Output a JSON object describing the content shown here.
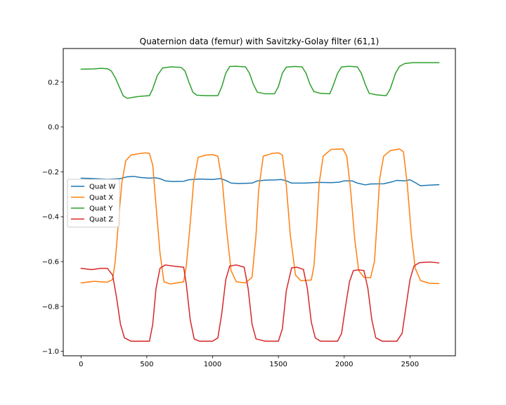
{
  "chart_data": {
    "type": "line",
    "title": "Quaternion data (femur) with Savitzky-Golay filter (61,1)",
    "xlabel": "",
    "ylabel": "",
    "xlim": [
      -135,
      2845
    ],
    "ylim": [
      -1.02,
      0.35
    ],
    "xticks": [
      0,
      500,
      1000,
      1500,
      2000,
      2500
    ],
    "xtick_labels": [
      "0",
      "500",
      "1000",
      "1500",
      "2000",
      "2500"
    ],
    "yticks": [
      0.2,
      0.0,
      -0.2,
      -0.4,
      -0.6,
      -0.8,
      -1.0
    ],
    "ytick_labels": [
      "0.2",
      "0.0",
      "−0.2",
      "−0.4",
      "−0.6",
      "−0.8",
      "−1.0"
    ],
    "grid": false,
    "legend_position": "center-left",
    "series": [
      {
        "name": "Quat W",
        "color": "#1f77b4",
        "points": [
          [
            0,
            -0.228
          ],
          [
            100,
            -0.23
          ],
          [
            200,
            -0.233
          ],
          [
            300,
            -0.23
          ],
          [
            350,
            -0.222
          ],
          [
            400,
            -0.22
          ],
          [
            450,
            -0.225
          ],
          [
            520,
            -0.228
          ],
          [
            560,
            -0.226
          ],
          [
            600,
            -0.23
          ],
          [
            640,
            -0.24
          ],
          [
            700,
            -0.243
          ],
          [
            780,
            -0.242
          ],
          [
            820,
            -0.235
          ],
          [
            900,
            -0.232
          ],
          [
            1000,
            -0.234
          ],
          [
            1060,
            -0.23
          ],
          [
            1100,
            -0.238
          ],
          [
            1140,
            -0.25
          ],
          [
            1200,
            -0.252
          ],
          [
            1300,
            -0.25
          ],
          [
            1340,
            -0.24
          ],
          [
            1400,
            -0.237
          ],
          [
            1480,
            -0.236
          ],
          [
            1520,
            -0.234
          ],
          [
            1560,
            -0.24
          ],
          [
            1600,
            -0.25
          ],
          [
            1700,
            -0.25
          ],
          [
            1800,
            -0.247
          ],
          [
            1900,
            -0.248
          ],
          [
            1960,
            -0.246
          ],
          [
            2000,
            -0.24
          ],
          [
            2060,
            -0.24
          ],
          [
            2100,
            -0.25
          ],
          [
            2160,
            -0.258
          ],
          [
            2200,
            -0.254
          ],
          [
            2300,
            -0.253
          ],
          [
            2360,
            -0.245
          ],
          [
            2400,
            -0.238
          ],
          [
            2460,
            -0.24
          ],
          [
            2500,
            -0.235
          ],
          [
            2540,
            -0.248
          ],
          [
            2580,
            -0.262
          ],
          [
            2620,
            -0.26
          ],
          [
            2720,
            -0.257
          ]
        ]
      },
      {
        "name": "Quat X",
        "color": "#ff7f0e",
        "points": [
          [
            0,
            -0.695
          ],
          [
            100,
            -0.688
          ],
          [
            200,
            -0.692
          ],
          [
            240,
            -0.68
          ],
          [
            260,
            -0.6
          ],
          [
            285,
            -0.42
          ],
          [
            310,
            -0.25
          ],
          [
            340,
            -0.15
          ],
          [
            380,
            -0.125
          ],
          [
            450,
            -0.118
          ],
          [
            490,
            -0.115
          ],
          [
            520,
            -0.118
          ],
          [
            545,
            -0.17
          ],
          [
            570,
            -0.35
          ],
          [
            600,
            -0.56
          ],
          [
            630,
            -0.69
          ],
          [
            680,
            -0.7
          ],
          [
            780,
            -0.69
          ],
          [
            800,
            -0.62
          ],
          [
            830,
            -0.43
          ],
          [
            855,
            -0.25
          ],
          [
            890,
            -0.135
          ],
          [
            950,
            -0.125
          ],
          [
            1000,
            -0.123
          ],
          [
            1040,
            -0.13
          ],
          [
            1075,
            -0.25
          ],
          [
            1105,
            -0.45
          ],
          [
            1140,
            -0.64
          ],
          [
            1180,
            -0.69
          ],
          [
            1250,
            -0.695
          ],
          [
            1300,
            -0.67
          ],
          [
            1330,
            -0.48
          ],
          [
            1350,
            -0.28
          ],
          [
            1385,
            -0.13
          ],
          [
            1450,
            -0.118
          ],
          [
            1500,
            -0.115
          ],
          [
            1530,
            -0.125
          ],
          [
            1560,
            -0.26
          ],
          [
            1590,
            -0.48
          ],
          [
            1630,
            -0.66
          ],
          [
            1670,
            -0.685
          ],
          [
            1750,
            -0.682
          ],
          [
            1770,
            -0.62
          ],
          [
            1790,
            -0.45
          ],
          [
            1810,
            -0.25
          ],
          [
            1840,
            -0.13
          ],
          [
            1900,
            -0.1
          ],
          [
            1990,
            -0.098
          ],
          [
            2020,
            -0.13
          ],
          [
            2050,
            -0.29
          ],
          [
            2080,
            -0.5
          ],
          [
            2110,
            -0.64
          ],
          [
            2150,
            -0.67
          ],
          [
            2200,
            -0.672
          ],
          [
            2230,
            -0.6
          ],
          [
            2250,
            -0.42
          ],
          [
            2270,
            -0.23
          ],
          [
            2300,
            -0.13
          ],
          [
            2350,
            -0.105
          ],
          [
            2420,
            -0.098
          ],
          [
            2450,
            -0.11
          ],
          [
            2480,
            -0.26
          ],
          [
            2510,
            -0.48
          ],
          [
            2540,
            -0.63
          ],
          [
            2580,
            -0.685
          ],
          [
            2650,
            -0.697
          ],
          [
            2720,
            -0.698
          ]
        ]
      },
      {
        "name": "Quat Y",
        "color": "#2ca02c",
        "points": [
          [
            0,
            0.258
          ],
          [
            100,
            0.259
          ],
          [
            150,
            0.262
          ],
          [
            200,
            0.26
          ],
          [
            230,
            0.25
          ],
          [
            260,
            0.22
          ],
          [
            290,
            0.18
          ],
          [
            320,
            0.14
          ],
          [
            350,
            0.128
          ],
          [
            400,
            0.133
          ],
          [
            450,
            0.137
          ],
          [
            520,
            0.14
          ],
          [
            545,
            0.17
          ],
          [
            580,
            0.23
          ],
          [
            620,
            0.263
          ],
          [
            680,
            0.268
          ],
          [
            760,
            0.266
          ],
          [
            790,
            0.25
          ],
          [
            820,
            0.2
          ],
          [
            850,
            0.155
          ],
          [
            880,
            0.142
          ],
          [
            950,
            0.14
          ],
          [
            1040,
            0.14
          ],
          [
            1070,
            0.18
          ],
          [
            1100,
            0.24
          ],
          [
            1130,
            0.27
          ],
          [
            1180,
            0.271
          ],
          [
            1250,
            0.268
          ],
          [
            1280,
            0.24
          ],
          [
            1310,
            0.19
          ],
          [
            1340,
            0.155
          ],
          [
            1400,
            0.148
          ],
          [
            1470,
            0.148
          ],
          [
            1500,
            0.18
          ],
          [
            1530,
            0.24
          ],
          [
            1560,
            0.267
          ],
          [
            1620,
            0.27
          ],
          [
            1680,
            0.268
          ],
          [
            1710,
            0.24
          ],
          [
            1740,
            0.19
          ],
          [
            1770,
            0.158
          ],
          [
            1820,
            0.15
          ],
          [
            1890,
            0.148
          ],
          [
            1910,
            0.175
          ],
          [
            1950,
            0.24
          ],
          [
            1980,
            0.268
          ],
          [
            2040,
            0.271
          ],
          [
            2100,
            0.268
          ],
          [
            2130,
            0.24
          ],
          [
            2160,
            0.19
          ],
          [
            2190,
            0.15
          ],
          [
            2250,
            0.143
          ],
          [
            2320,
            0.14
          ],
          [
            2350,
            0.17
          ],
          [
            2390,
            0.24
          ],
          [
            2420,
            0.27
          ],
          [
            2460,
            0.283
          ],
          [
            2520,
            0.287
          ],
          [
            2720,
            0.287
          ]
        ]
      },
      {
        "name": "Quat Z",
        "color": "#d62728",
        "points": [
          [
            0,
            -0.63
          ],
          [
            80,
            -0.636
          ],
          [
            150,
            -0.63
          ],
          [
            200,
            -0.63
          ],
          [
            240,
            -0.66
          ],
          [
            270,
            -0.76
          ],
          [
            300,
            -0.88
          ],
          [
            330,
            -0.94
          ],
          [
            380,
            -0.955
          ],
          [
            450,
            -0.955
          ],
          [
            520,
            -0.955
          ],
          [
            545,
            -0.88
          ],
          [
            570,
            -0.72
          ],
          [
            600,
            -0.63
          ],
          [
            640,
            -0.615
          ],
          [
            700,
            -0.62
          ],
          [
            780,
            -0.625
          ],
          [
            800,
            -0.7
          ],
          [
            830,
            -0.86
          ],
          [
            860,
            -0.945
          ],
          [
            900,
            -0.955
          ],
          [
            1000,
            -0.955
          ],
          [
            1040,
            -0.94
          ],
          [
            1070,
            -0.83
          ],
          [
            1100,
            -0.68
          ],
          [
            1130,
            -0.62
          ],
          [
            1180,
            -0.615
          ],
          [
            1240,
            -0.625
          ],
          [
            1270,
            -0.72
          ],
          [
            1300,
            -0.88
          ],
          [
            1330,
            -0.945
          ],
          [
            1400,
            -0.955
          ],
          [
            1500,
            -0.955
          ],
          [
            1530,
            -0.9
          ],
          [
            1560,
            -0.73
          ],
          [
            1600,
            -0.628
          ],
          [
            1640,
            -0.625
          ],
          [
            1690,
            -0.635
          ],
          [
            1720,
            -0.72
          ],
          [
            1750,
            -0.87
          ],
          [
            1780,
            -0.94
          ],
          [
            1820,
            -0.955
          ],
          [
            1950,
            -0.955
          ],
          [
            1980,
            -0.92
          ],
          [
            2010,
            -0.8
          ],
          [
            2040,
            -0.69
          ],
          [
            2070,
            -0.64
          ],
          [
            2110,
            -0.637
          ],
          [
            2150,
            -0.64
          ],
          [
            2180,
            -0.72
          ],
          [
            2210,
            -0.86
          ],
          [
            2240,
            -0.94
          ],
          [
            2290,
            -0.955
          ],
          [
            2400,
            -0.955
          ],
          [
            2440,
            -0.92
          ],
          [
            2470,
            -0.8
          ],
          [
            2500,
            -0.68
          ],
          [
            2530,
            -0.62
          ],
          [
            2570,
            -0.605
          ],
          [
            2650,
            -0.602
          ],
          [
            2720,
            -0.606
          ]
        ]
      }
    ]
  }
}
